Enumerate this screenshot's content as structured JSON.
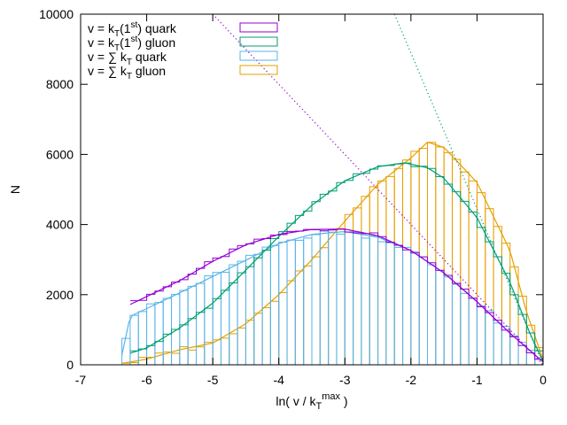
{
  "chart_data": {
    "type": "bar",
    "xlabel": "ln( v / k",
    "xlabel_sub": "T",
    "xlabel_sup": "max",
    "xlabel_end": " )",
    "ylabel": "N",
    "xlim": [
      -7,
      0
    ],
    "ylim": [
      0,
      10000
    ],
    "x_ticks": [
      -7,
      -6,
      -5,
      -4,
      -3,
      -2,
      -1,
      0
    ],
    "y_ticks": [
      0,
      2000,
      4000,
      6000,
      8000,
      10000
    ],
    "grid": false,
    "legend_position": "top-left",
    "bin_width": 0.125,
    "series": [
      {
        "name": "v = kT(1st) quark",
        "legend": {
          "a": "v = k",
          "sub": "T",
          "b": "(1",
          "sup": "st",
          "c": ")  quark"
        },
        "color": "#9400d3",
        "style": "step",
        "x_start": -6.25,
        "x_end": 0,
        "fit": {
          "xstart": -6.25,
          "xend": 0,
          "points": [
            [
              -6.25,
              1720
            ],
            [
              -5.5,
              2400
            ],
            [
              -5,
              2950
            ],
            [
              -4.5,
              3420
            ],
            [
              -4,
              3720
            ],
            [
              -3.5,
              3860
            ],
            [
              -3,
              3870
            ],
            [
              -2.5,
              3680
            ],
            [
              -2,
              3260
            ],
            [
              -1.5,
              2620
            ],
            [
              -1,
              1800
            ],
            [
              -0.5,
              900
            ],
            [
              0,
              80
            ]
          ]
        }
      },
      {
        "name": "v = kT(1st) gluon",
        "legend": {
          "a": "v = k",
          "sub": "T",
          "b": "(1",
          "sup": "st",
          "c": ")  gluon"
        },
        "color": "#009e73",
        "style": "step",
        "x_start": -6.25,
        "x_end": 0,
        "fit": {
          "xstart": -6.25,
          "xend": 0,
          "points": [
            [
              -6.25,
              330
            ],
            [
              -6,
              480
            ],
            [
              -5.5,
              1050
            ],
            [
              -5,
              1760
            ],
            [
              -4.5,
              2700
            ],
            [
              -4,
              3660
            ],
            [
              -3.5,
              4550
            ],
            [
              -3,
              5250
            ],
            [
              -2.5,
              5650
            ],
            [
              -2.1,
              5760
            ],
            [
              -1.75,
              5620
            ],
            [
              -1.5,
              5320
            ],
            [
              -1,
              4200
            ],
            [
              -0.5,
              2350
            ],
            [
              -0.2,
              900
            ],
            [
              0,
              100
            ]
          ]
        }
      },
      {
        "name": "v = ΣkT quark",
        "legend": {
          "a": "v = ∑ k",
          "sub": "T",
          "b": "  quark"
        },
        "color": "#56b4e9",
        "style": "box",
        "x_start": -6.375,
        "x_end": 0,
        "fit": {
          "xstart": -6.375,
          "xend": 0,
          "points": [
            [
              -6.375,
              280
            ],
            [
              -6.25,
              1380
            ],
            [
              -5.5,
              2050
            ],
            [
              -5,
              2520
            ],
            [
              -4.5,
              2980
            ],
            [
              -4,
              3460
            ],
            [
              -3.5,
              3720
            ],
            [
              -3,
              3800
            ],
            [
              -2.5,
              3640
            ],
            [
              -2,
              3260
            ],
            [
              -1.5,
              2620
            ],
            [
              -1,
              1800
            ],
            [
              -0.5,
              900
            ],
            [
              0,
              80
            ]
          ]
        }
      },
      {
        "name": "v = ΣkT gluon",
        "legend": {
          "a": "v = ∑ k",
          "sub": "T",
          "b": "  gluon"
        },
        "color": "#e69f00",
        "style": "box",
        "x_start": -6.375,
        "x_end": 0,
        "fit": {
          "xstart": -6.375,
          "xend": 0,
          "points": [
            [
              -6.375,
              40
            ],
            [
              -6,
              160
            ],
            [
              -5.5,
              430
            ],
            [
              -5,
              620
            ],
            [
              -4.5,
              1170
            ],
            [
              -4,
              2000
            ],
            [
              -3.5,
              3000
            ],
            [
              -3,
              4100
            ],
            [
              -2.5,
              5150
            ],
            [
              -2,
              5900
            ],
            [
              -1.75,
              6350
            ],
            [
              -1.5,
              6200
            ],
            [
              -1,
              5200
            ],
            [
              -0.5,
              3250
            ],
            [
              -0.25,
              1500
            ],
            [
              0,
              150
            ]
          ]
        }
      }
    ],
    "dotted_lines": [
      {
        "color": "#9400d3",
        "points": [
          [
            -5,
            10000
          ],
          [
            0,
            0
          ]
        ]
      },
      {
        "color": "#009e73",
        "points": [
          [
            -2.25,
            10000
          ],
          [
            0,
            0
          ]
        ]
      }
    ]
  }
}
